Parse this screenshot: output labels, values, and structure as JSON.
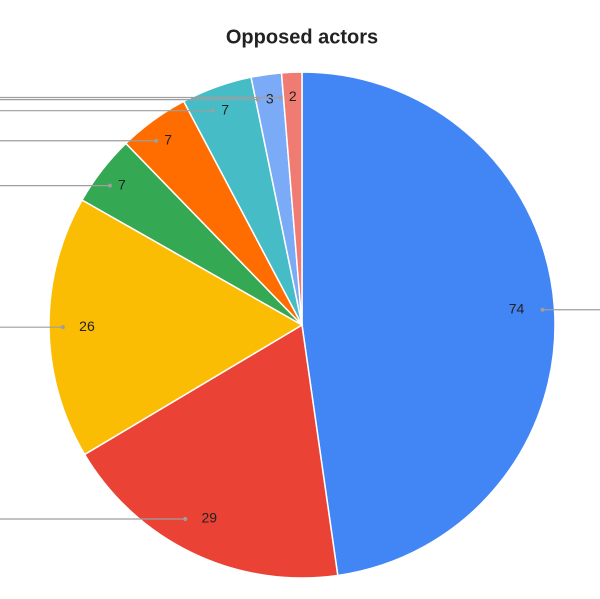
{
  "chart_data": {
    "type": "pie",
    "title": "Opposed actors",
    "values": [
      74,
      29,
      26,
      7,
      7,
      7,
      3,
      2
    ],
    "colors": [
      "#4285f4",
      "#ea4335",
      "#fbbc04",
      "#34a853",
      "#ff6d01",
      "#46bdc6",
      "#7baaf7",
      "#f07b72"
    ]
  }
}
